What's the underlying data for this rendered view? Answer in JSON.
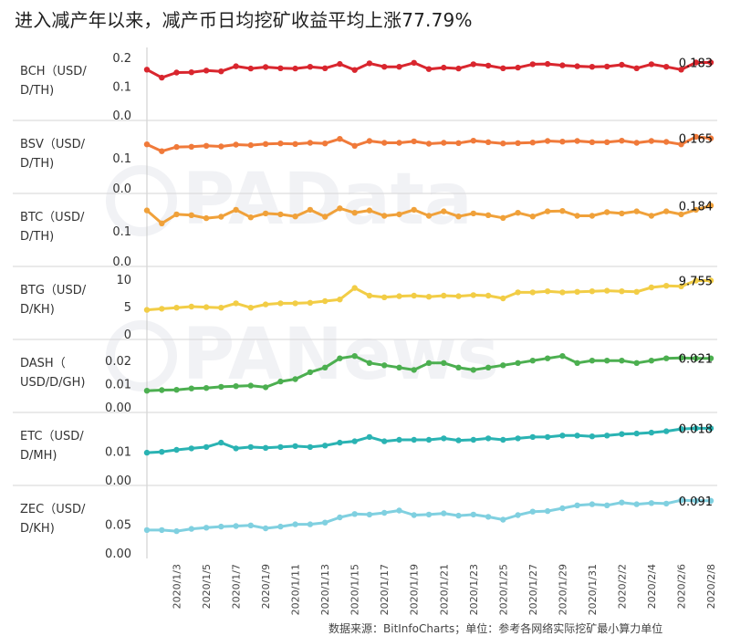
{
  "title": "进入减产年以来，减产币日均挖矿收益平均上涨77.79%",
  "source": "数据来源：BitInfoCharts；单位：参考各网络实际挖矿最小算力单位",
  "watermarks": [
    "PAData",
    "PANews"
  ],
  "chart_data": {
    "type": "line",
    "x": [
      "2020/1/1",
      "2020/1/2",
      "2020/1/3",
      "2020/1/4",
      "2020/1/5",
      "2020/1/6",
      "2020/1/7",
      "2020/1/8",
      "2020/1/9",
      "2020/1/10",
      "2020/1/11",
      "2020/1/12",
      "2020/1/13",
      "2020/1/14",
      "2020/1/15",
      "2020/1/16",
      "2020/1/17",
      "2020/1/18",
      "2020/1/19",
      "2020/1/20",
      "2020/1/21",
      "2020/1/22",
      "2020/1/23",
      "2020/1/24",
      "2020/1/25",
      "2020/1/26",
      "2020/1/27",
      "2020/1/28",
      "2020/1/29",
      "2020/1/30",
      "2020/1/31",
      "2020/2/1",
      "2020/2/2",
      "2020/2/3",
      "2020/2/4",
      "2020/2/5",
      "2020/2/6",
      "2020/2/7",
      "2020/2/8"
    ],
    "x_tick_labels": [
      "2020/1/3",
      "2020/1/5",
      "2020/1/7",
      "2020/1/9",
      "2020/1/11",
      "2020/1/13",
      "2020/1/15",
      "2020/1/17",
      "2020/1/19",
      "2020/1/21",
      "2020/1/23",
      "2020/1/25",
      "2020/1/27",
      "2020/1/29",
      "2020/1/31",
      "2020/2/2",
      "2020/2/4",
      "2020/2/6",
      "2020/2/8"
    ],
    "panels": [
      {
        "name": "bch",
        "label_lines": [
          "BCH（USD/",
          "D/TH)"
        ],
        "color": "#d9262e",
        "ticks": [
          {
            "v": 0.2,
            "t": "0.2"
          },
          {
            "v": 0.1,
            "t": "0.1"
          },
          {
            "v": 0.0,
            "t": "0.0"
          }
        ],
        "ylim": [
          0,
          0.21
        ],
        "last_label": "0.183",
        "values": [
          0.158,
          0.13,
          0.148,
          0.149,
          0.155,
          0.152,
          0.17,
          0.162,
          0.167,
          0.163,
          0.162,
          0.168,
          0.163,
          0.178,
          0.157,
          0.18,
          0.168,
          0.168,
          0.182,
          0.16,
          0.165,
          0.162,
          0.177,
          0.172,
          0.163,
          0.165,
          0.177,
          0.178,
          0.173,
          0.17,
          0.168,
          0.169,
          0.175,
          0.163,
          0.177,
          0.168,
          0.158,
          0.183,
          0.183
        ]
      },
      {
        "name": "bsv",
        "label_lines": [
          "BSV（USD/",
          "D/TH)"
        ],
        "color": "#f07a3a",
        "ticks": [
          {
            "v": 0.1,
            "t": "0.1"
          },
          {
            "v": 0.0,
            "t": "0.0"
          }
        ],
        "ylim": [
          0,
          0.2
        ],
        "last_label": "0.165",
        "values": [
          0.145,
          0.122,
          0.136,
          0.137,
          0.14,
          0.138,
          0.144,
          0.142,
          0.146,
          0.148,
          0.146,
          0.15,
          0.148,
          0.163,
          0.14,
          0.156,
          0.15,
          0.15,
          0.155,
          0.147,
          0.15,
          0.149,
          0.157,
          0.152,
          0.148,
          0.149,
          0.151,
          0.156,
          0.154,
          0.156,
          0.152,
          0.152,
          0.157,
          0.15,
          0.156,
          0.153,
          0.145,
          0.17,
          0.165
        ]
      },
      {
        "name": "btc",
        "label_lines": [
          "BTC（USD/",
          "D/TH)"
        ],
        "color": "#f0a13a",
        "ticks": [
          {
            "v": 0.1,
            "t": "0.1"
          },
          {
            "v": 0.0,
            "t": "0.0"
          }
        ],
        "ylim": [
          0,
          0.2
        ],
        "last_label": "0.184",
        "values": [
          0.168,
          0.125,
          0.155,
          0.152,
          0.142,
          0.147,
          0.17,
          0.145,
          0.158,
          0.155,
          0.148,
          0.17,
          0.147,
          0.175,
          0.16,
          0.168,
          0.15,
          0.155,
          0.17,
          0.15,
          0.165,
          0.148,
          0.158,
          0.152,
          0.143,
          0.16,
          0.148,
          0.165,
          0.166,
          0.15,
          0.15,
          0.162,
          0.158,
          0.165,
          0.15,
          0.165,
          0.155,
          0.17,
          0.184
        ]
      },
      {
        "name": "btg",
        "label_lines": [
          "BTG（USD/",
          "D/KH)"
        ],
        "color": "#f2cd46",
        "ticks": [
          {
            "v": 10,
            "t": "10"
          },
          {
            "v": 5,
            "t": "5"
          },
          {
            "v": 0,
            "t": "0"
          }
        ],
        "ylim": [
          0,
          11
        ],
        "last_label": "9.755",
        "values": [
          4.4,
          4.6,
          4.8,
          5.0,
          4.9,
          4.8,
          5.6,
          4.8,
          5.4,
          5.6,
          5.6,
          5.7,
          6.0,
          6.3,
          8.4,
          7.0,
          6.7,
          6.9,
          7.0,
          6.8,
          7.0,
          6.9,
          7.1,
          7.0,
          6.5,
          7.6,
          7.6,
          7.8,
          7.6,
          7.7,
          7.8,
          7.9,
          7.8,
          7.7,
          8.5,
          8.8,
          8.7,
          9.755,
          9.755
        ]
      },
      {
        "name": "dash",
        "label_lines": [
          "DASH（",
          "USD/D/GH)"
        ],
        "color": "#4caf50",
        "ticks": [
          {
            "v": 0.02,
            "t": "0.02"
          },
          {
            "v": 0.01,
            "t": "0.01"
          },
          {
            "v": 0.0,
            "t": "0.00"
          }
        ],
        "ylim": [
          0,
          0.026
        ],
        "last_label": "0.021",
        "values": [
          0.007,
          0.0073,
          0.0074,
          0.008,
          0.0082,
          0.0087,
          0.009,
          0.0092,
          0.0085,
          0.011,
          0.012,
          0.015,
          0.017,
          0.021,
          0.022,
          0.019,
          0.018,
          0.017,
          0.016,
          0.019,
          0.019,
          0.017,
          0.016,
          0.017,
          0.018,
          0.019,
          0.02,
          0.021,
          0.022,
          0.019,
          0.02,
          0.02,
          0.02,
          0.019,
          0.02,
          0.021,
          0.0212,
          0.021,
          0.021
        ]
      },
      {
        "name": "etc",
        "label_lines": [
          "ETC（USD/",
          "D/MH)"
        ],
        "color": "#2ab3b3",
        "ticks": [
          {
            "v": 0.01,
            "t": "0.01"
          },
          {
            "v": 0.0,
            "t": "0.00"
          }
        ],
        "ylim": [
          0,
          0.021
        ],
        "last_label": "0.018",
        "values": [
          0.0095,
          0.0098,
          0.0105,
          0.011,
          0.0115,
          0.013,
          0.011,
          0.0115,
          0.0112,
          0.0115,
          0.0118,
          0.0115,
          0.012,
          0.013,
          0.0135,
          0.015,
          0.0135,
          0.014,
          0.014,
          0.014,
          0.0145,
          0.0138,
          0.014,
          0.0145,
          0.014,
          0.0145,
          0.015,
          0.015,
          0.0155,
          0.0155,
          0.0152,
          0.0155,
          0.016,
          0.0162,
          0.0165,
          0.017,
          0.0178,
          0.018,
          0.018
        ]
      },
      {
        "name": "zec",
        "label_lines": [
          "ZEC（USD/",
          "D/KH)"
        ],
        "color": "#80d0e0",
        "ticks": [
          {
            "v": 0.05,
            "t": "0.05"
          },
          {
            "v": 0.0,
            "t": "0.00"
          }
        ],
        "ylim": [
          0,
          0.105
        ],
        "last_label": "0.091",
        "values": [
          0.04,
          0.04,
          0.038,
          0.042,
          0.044,
          0.046,
          0.047,
          0.048,
          0.043,
          0.046,
          0.05,
          0.05,
          0.053,
          0.062,
          0.068,
          0.067,
          0.07,
          0.074,
          0.066,
          0.067,
          0.069,
          0.065,
          0.067,
          0.063,
          0.058,
          0.066,
          0.072,
          0.073,
          0.078,
          0.083,
          0.085,
          0.083,
          0.088,
          0.085,
          0.087,
          0.086,
          0.092,
          0.091,
          0.091
        ]
      }
    ]
  }
}
